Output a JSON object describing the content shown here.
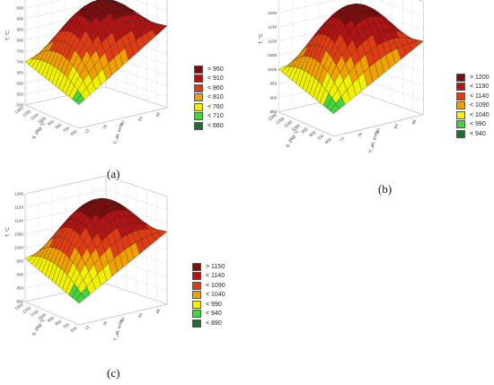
{
  "chart_data": [
    {
      "type": "surface3d",
      "panel_label": "(a)",
      "zlabel": "T, °C",
      "xlabel": "V_air, m³/h",
      "ylabel": "q, J/kg·°C",
      "xticks": [
        "72",
        "76",
        "80",
        "84",
        "88"
      ],
      "yticks": [
        "1300",
        "1200",
        "1100",
        "1000",
        "900",
        "800",
        "700",
        "600"
      ],
      "zticks": [
        "1000",
        "950",
        "900",
        "850",
        "800",
        "750",
        "700",
        "650",
        "600",
        "550",
        "500"
      ],
      "zlim": [
        500,
        1000
      ],
      "surface": {
        "peak": 960,
        "corner_front": 610,
        "corner_left": 700,
        "corner_right": 880,
        "corner_back": 850
      },
      "legend": [
        {
          "label": "> 950",
          "color": "#7a0f0f"
        },
        {
          "label": "< 910",
          "color": "#b01414"
        },
        {
          "label": "< 860",
          "color": "#e03c14"
        },
        {
          "label": "< 810",
          "color": "#f0a000"
        },
        {
          "label": "< 760",
          "color": "#f0f000"
        },
        {
          "label": "< 710",
          "color": "#46d23c"
        },
        {
          "label": "< 660",
          "color": "#1e6e32"
        }
      ]
    },
    {
      "type": "surface3d",
      "panel_label": "(b)",
      "zlabel": "T, °C",
      "xlabel": "V_air, m³/h",
      "ylabel": "q, J/kg·°C",
      "xticks": [
        "72",
        "76",
        "80",
        "84",
        "88"
      ],
      "yticks": [
        "1300",
        "1200",
        "1100",
        "1000",
        "900",
        "800",
        "700",
        "600"
      ],
      "zticks": [
        "1250",
        "1200",
        "1150",
        "1100",
        "1050",
        "1000",
        "950",
        "900",
        "850"
      ],
      "zlim": [
        850,
        1250
      ],
      "surface": {
        "peak": 1215,
        "corner_front": 930,
        "corner_left": 1000,
        "corner_right": 1110,
        "corner_back": 1080
      },
      "legend": [
        {
          "label": "> 1200",
          "color": "#7a0f0f"
        },
        {
          "label": "< 1190",
          "color": "#b01414"
        },
        {
          "label": "< 1140",
          "color": "#e03c14"
        },
        {
          "label": "< 1090",
          "color": "#f0a000"
        },
        {
          "label": "< 1040",
          "color": "#f0f000"
        },
        {
          "label": "< 990",
          "color": "#46d23c"
        },
        {
          "label": "< 940",
          "color": "#1e6e32"
        }
      ]
    },
    {
      "type": "surface3d",
      "panel_label": "(c)",
      "zlabel": "T, °C",
      "xlabel": "V_air, m³/h",
      "ylabel": "q, J/kg·°C",
      "xticks": [
        "72",
        "76",
        "80",
        "84",
        "88"
      ],
      "yticks": [
        "1300",
        "1200",
        "1100",
        "1000",
        "900",
        "800",
        "700",
        "600"
      ],
      "zticks": [
        "1200",
        "1150",
        "1100",
        "1050",
        "1000",
        "950",
        "900",
        "850",
        "800"
      ],
      "zlim": [
        800,
        1200
      ],
      "surface": {
        "peak": 1165,
        "corner_front": 880,
        "corner_left": 960,
        "corner_right": 1070,
        "corner_back": 1040
      },
      "legend": [
        {
          "label": "> 1150",
          "color": "#7a0f0f"
        },
        {
          "label": "< 1140",
          "color": "#b01414"
        },
        {
          "label": "< 1090",
          "color": "#e03c14"
        },
        {
          "label": "< 1040",
          "color": "#f0a000"
        },
        {
          "label": "< 990",
          "color": "#f0f000"
        },
        {
          "label": "< 940",
          "color": "#46d23c"
        },
        {
          "label": "< 890",
          "color": "#1e6e32"
        }
      ]
    }
  ]
}
